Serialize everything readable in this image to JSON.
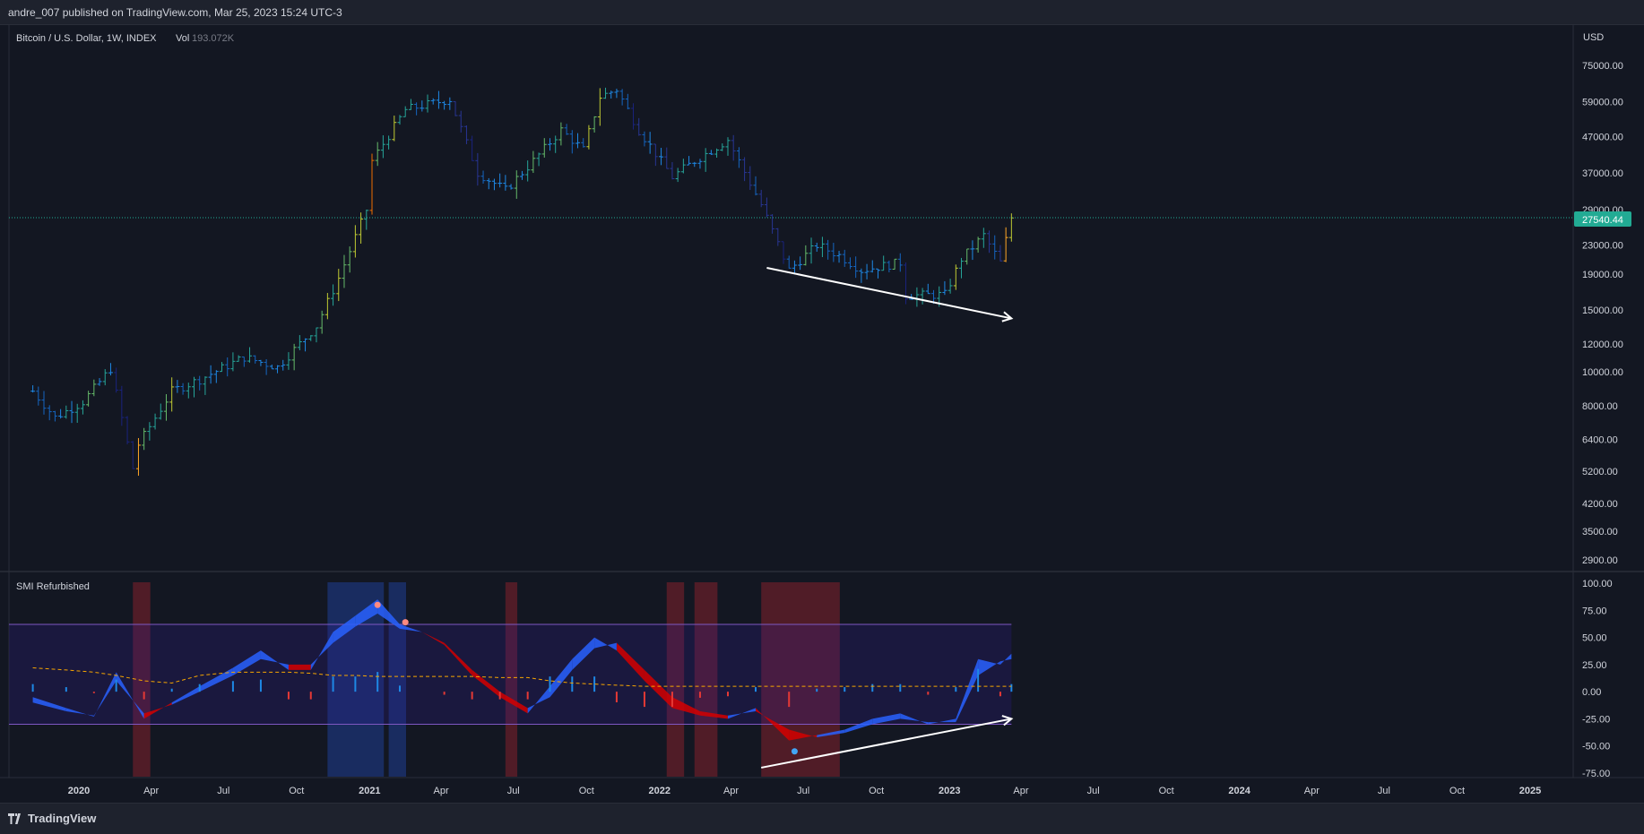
{
  "header": {
    "attribution": "andre_007 published on TradingView.com, Mar 25, 2023 15:24 UTC-3"
  },
  "main_pane": {
    "symbol": "Bitcoin / U.S. Dollar, 1W, INDEX",
    "vol_label": "Vol",
    "vol_value": "193.072K",
    "currency": "USD",
    "last_price_tag": "27540.44"
  },
  "indicator_pane": {
    "title": "SMI Refurbished"
  },
  "footer": {
    "brand": "TradingView"
  },
  "colors": {
    "background": "#131722",
    "price_tag": "#22ab94",
    "arrow": "#ffffff",
    "smi_upper_band": "#7e57c2",
    "signal_line": "#f7a600",
    "bull_fill": "#2962ff",
    "bear_fill": "#d50000",
    "bull_highlight": "#1e3a8a",
    "bear_highlight": "#7a1f2b"
  },
  "chart_data": [
    {
      "type": "candlestick",
      "title": "Bitcoin / U.S. Dollar, 1W, INDEX",
      "y_scale": "log",
      "y_ticks": [
        75000,
        59000,
        47000,
        37000,
        29000,
        23000,
        19000,
        15000,
        12000,
        10000,
        8000,
        6400,
        5200,
        4200,
        3500,
        2900
      ],
      "y_tick_labels": [
        "75000.00",
        "59000.00",
        "47000.00",
        "37000.00",
        "29000.00",
        "23000.00",
        "19000.00",
        "15000.00",
        "12000.00",
        "10000.00",
        "8000.00",
        "6400.00",
        "5200.00",
        "4200.00",
        "3500.00",
        "2900.00"
      ],
      "last_price": 27540.44,
      "x_ticks": [
        "2020",
        "Apr",
        "Jul",
        "Oct",
        "2021",
        "Apr",
        "Jul",
        "Oct",
        "2022",
        "Apr",
        "Jul",
        "Oct",
        "2023",
        "Apr",
        "Jul",
        "Oct",
        "2024",
        "Apr",
        "Jul",
        "Oct",
        "2025"
      ],
      "x_tick_dates": [
        "2020-01-01",
        "2020-04-01",
        "2020-07-01",
        "2020-10-01",
        "2021-01-01",
        "2021-04-01",
        "2021-07-01",
        "2021-10-01",
        "2022-01-01",
        "2022-04-01",
        "2022-07-01",
        "2022-10-01",
        "2023-01-01",
        "2023-04-01",
        "2023-07-01",
        "2023-10-01",
        "2024-01-01",
        "2024-04-01",
        "2024-07-01",
        "2024-10-01",
        "2025-01-01"
      ],
      "approx_weekly_close": [
        [
          "2019-11-04",
          8800
        ],
        [
          "2019-12-02",
          7400
        ],
        [
          "2020-01-06",
          8200
        ],
        [
          "2020-02-10",
          10200
        ],
        [
          "2020-03-09",
          5300
        ],
        [
          "2020-03-16",
          6200
        ],
        [
          "2020-04-27",
          8800
        ],
        [
          "2020-06-01",
          9500
        ],
        [
          "2020-07-27",
          11000
        ],
        [
          "2020-09-07",
          10300
        ],
        [
          "2020-10-26",
          13500
        ],
        [
          "2020-11-23",
          18500
        ],
        [
          "2020-12-28",
          29000
        ],
        [
          "2021-01-04",
          40000
        ],
        [
          "2021-02-15",
          56000
        ],
        [
          "2021-03-15",
          58000
        ],
        [
          "2021-04-12",
          60000
        ],
        [
          "2021-05-17",
          37000
        ],
        [
          "2021-06-21",
          33000
        ],
        [
          "2021-07-26",
          40000
        ],
        [
          "2021-08-30",
          49000
        ],
        [
          "2021-09-27",
          43000
        ],
        [
          "2021-10-18",
          61000
        ],
        [
          "2021-11-08",
          64000
        ],
        [
          "2021-12-06",
          49000
        ],
        [
          "2022-01-17",
          36000
        ],
        [
          "2022-02-14",
          40000
        ],
        [
          "2022-03-28",
          46000
        ],
        [
          "2022-05-09",
          30000
        ],
        [
          "2022-06-13",
          19500
        ],
        [
          "2022-07-18",
          23000
        ],
        [
          "2022-08-15",
          21500
        ],
        [
          "2022-09-12",
          19500
        ],
        [
          "2022-10-31",
          20500
        ],
        [
          "2022-11-07",
          16500
        ],
        [
          "2022-12-26",
          16600
        ],
        [
          "2023-01-16",
          21000
        ],
        [
          "2023-02-13",
          24500
        ],
        [
          "2023-03-06",
          20500
        ],
        [
          "2023-03-20",
          27540
        ]
      ],
      "annotation": {
        "type": "arrow",
        "from": [
          "2022-05-16",
          19800
        ],
        "to": [
          "2023-03-20",
          14200
        ]
      }
    },
    {
      "type": "area",
      "title": "SMI Refurbished",
      "ylim": [
        -75,
        100
      ],
      "y_ticks": [
        100,
        75,
        50,
        25,
        0,
        -25,
        -50,
        -75
      ],
      "y_tick_labels": [
        "100.00",
        "75.00",
        "50.00",
        "25.00",
        "0.00",
        "-25.00",
        "-50.00",
        "-75.00"
      ],
      "x": [
        "2019-11-04",
        "2019-12-16",
        "2020-01-20",
        "2020-02-17",
        "2020-03-23",
        "2020-04-27",
        "2020-06-01",
        "2020-07-13",
        "2020-08-17",
        "2020-09-21",
        "2020-10-19",
        "2020-11-16",
        "2020-12-14",
        "2021-01-11",
        "2021-02-08",
        "2021-03-08",
        "2021-04-05",
        "2021-05-10",
        "2021-06-14",
        "2021-07-19",
        "2021-08-16",
        "2021-09-13",
        "2021-10-11",
        "2021-11-08",
        "2021-12-13",
        "2022-01-17",
        "2022-02-21",
        "2022-03-28",
        "2022-05-02",
        "2022-06-13",
        "2022-07-18",
        "2022-08-22",
        "2022-09-26",
        "2022-10-31",
        "2022-12-05",
        "2023-01-09",
        "2023-02-06",
        "2023-03-06",
        "2023-03-20"
      ],
      "series": [
        {
          "values": [
            -5,
            -15,
            -23,
            18,
            -25,
            -10,
            5,
            22,
            38,
            20,
            20,
            55,
            70,
            85,
            62,
            55,
            43,
            15,
            -5,
            -20,
            5,
            30,
            50,
            38,
            10,
            -15,
            -22,
            -25,
            -15,
            -45,
            -40,
            -35,
            -25,
            -20,
            -30,
            -25,
            30,
            25,
            35
          ]
        },
        {
          "values": [
            -10,
            -18,
            -22,
            10,
            -20,
            -12,
            0,
            15,
            30,
            25,
            25,
            45,
            60,
            72,
            58,
            55,
            45,
            20,
            0,
            -15,
            -5,
            20,
            40,
            45,
            20,
            -5,
            -18,
            -22,
            -18,
            -35,
            -42,
            -38,
            -30,
            -25,
            -28,
            -28,
            15,
            28,
            30
          ]
        }
      ],
      "upper_band": 62,
      "lower_band": -30,
      "signal_line_values": [
        22,
        20,
        18,
        15,
        10,
        8,
        15,
        18,
        18,
        18,
        17,
        15,
        15,
        14,
        14,
        14,
        14,
        14,
        13,
        13,
        10,
        8,
        7,
        6,
        5,
        5,
        5,
        5,
        5,
        5,
        5,
        5,
        5,
        5,
        5,
        5,
        5,
        5,
        5
      ],
      "signal_markers": [
        {
          "date": "2021-01-11",
          "value": 80,
          "kind": "bearish"
        },
        {
          "date": "2021-02-15",
          "value": 64,
          "kind": "bearish"
        },
        {
          "date": "2022-06-20",
          "value": -55,
          "kind": "bullish"
        }
      ],
      "highlight_zones": [
        {
          "from": "2020-03-09",
          "to": "2020-03-23",
          "kind": "bear"
        },
        {
          "from": "2020-11-09",
          "to": "2021-01-11",
          "kind": "bull"
        },
        {
          "from": "2021-01-25",
          "to": "2021-02-08",
          "kind": "bull"
        },
        {
          "from": "2021-06-21",
          "to": "2021-06-28",
          "kind": "bear"
        },
        {
          "from": "2022-01-10",
          "to": "2022-01-24",
          "kind": "bear"
        },
        {
          "from": "2022-02-14",
          "to": "2022-03-07",
          "kind": "bear"
        },
        {
          "from": "2022-05-09",
          "to": "2022-08-08",
          "kind": "bear"
        }
      ],
      "annotation": {
        "type": "arrow",
        "from": [
          "2022-05-09",
          -70
        ],
        "to": [
          "2023-03-20",
          -25
        ]
      }
    }
  ]
}
